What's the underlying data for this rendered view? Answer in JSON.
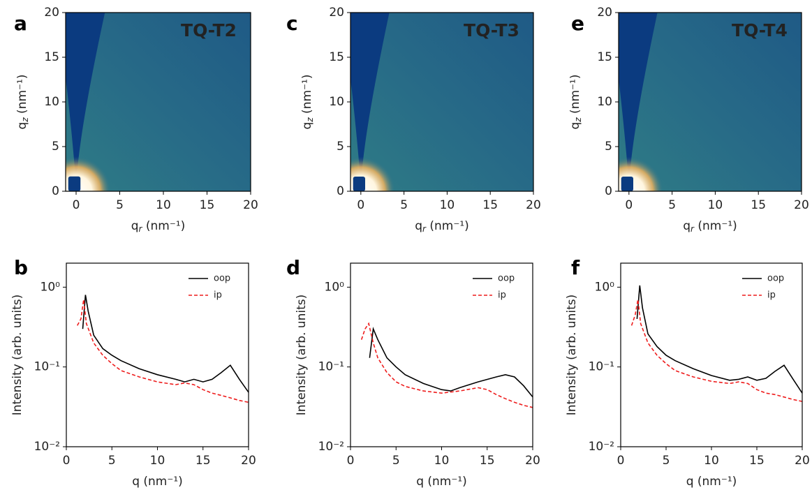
{
  "chart_data": [
    {
      "type": "heatmap",
      "panel": "a",
      "title": "TQ-T2",
      "title_color": "#f2b28e",
      "x_label": "qr (nm⁻¹)",
      "y_label": "qz (nm⁻¹)",
      "xlim": [
        -1.2,
        20
      ],
      "ylim": [
        0,
        20
      ],
      "xticks": [
        0,
        5,
        10,
        15,
        20
      ],
      "yticks": [
        0,
        5,
        10,
        15,
        20
      ]
    },
    {
      "type": "heatmap",
      "panel": "c",
      "title": "TQ-T3",
      "title_color": "#ee82ea",
      "x_label": "qr (nm⁻¹)",
      "y_label": "qz (nm⁻¹)",
      "xlim": [
        -1.2,
        20
      ],
      "ylim": [
        0,
        20
      ],
      "xticks": [
        0,
        5,
        10,
        15,
        20
      ],
      "yticks": [
        0,
        5,
        10,
        15,
        20
      ]
    },
    {
      "type": "heatmap",
      "panel": "e",
      "title": "TQ-T4",
      "title_color": "#6466ee",
      "x_label": "qr (nm⁻¹)",
      "y_label": "qz (nm⁻¹)",
      "xlim": [
        -1.2,
        20
      ],
      "ylim": [
        0,
        20
      ],
      "xticks": [
        0,
        5,
        10,
        15,
        20
      ],
      "yticks": [
        0,
        5,
        10,
        15,
        20
      ]
    },
    {
      "type": "line",
      "panel": "b",
      "x_label": "q (nm⁻¹)",
      "y_label": "Intensity (arb. units)",
      "log_y": true,
      "legend": "upper right",
      "xlim": [
        0,
        20
      ],
      "ylim": [
        0.01,
        2
      ],
      "xticks": [
        0,
        5,
        10,
        15,
        20
      ],
      "yticks": [
        {
          "value": 0.01,
          "label": "10⁻²"
        },
        {
          "value": 0.1,
          "label": "10⁻¹"
        },
        {
          "value": 1,
          "label": "10⁰"
        }
      ],
      "series": [
        {
          "name": "oop",
          "color": "#000000",
          "dashed": false,
          "x": [
            1.8,
            2.1,
            2.4,
            3,
            4,
            5,
            6,
            8,
            10,
            12,
            13,
            14,
            15,
            16,
            17,
            18,
            19,
            20
          ],
          "values": [
            0.3,
            0.8,
            0.5,
            0.25,
            0.17,
            0.14,
            0.12,
            0.095,
            0.08,
            0.07,
            0.065,
            0.07,
            0.065,
            0.07,
            0.085,
            0.105,
            0.07,
            0.048
          ]
        },
        {
          "name": "ip",
          "color": "#ee1c1c",
          "dashed": true,
          "x": [
            1.2,
            1.6,
            1.9,
            2.2,
            3,
            4,
            5,
            6,
            8,
            10,
            12,
            13,
            14,
            15,
            16,
            17,
            18,
            19,
            20
          ],
          "values": [
            0.33,
            0.4,
            0.7,
            0.35,
            0.2,
            0.14,
            0.11,
            0.09,
            0.075,
            0.065,
            0.06,
            0.063,
            0.06,
            0.052,
            0.047,
            0.044,
            0.041,
            0.038,
            0.036
          ]
        }
      ]
    },
    {
      "type": "line",
      "panel": "d",
      "x_label": "q (nm⁻¹)",
      "y_label": "Intensity (arb. units)",
      "log_y": true,
      "legend": "upper right",
      "xlim": [
        0,
        20
      ],
      "ylim": [
        0.01,
        2
      ],
      "xticks": [
        0,
        5,
        10,
        15,
        20
      ],
      "yticks": [
        {
          "value": 0.01,
          "label": "10⁻²"
        },
        {
          "value": 0.1,
          "label": "10⁻¹"
        },
        {
          "value": 1,
          "label": "10⁰"
        }
      ],
      "series": [
        {
          "name": "oop",
          "color": "#000000",
          "dashed": false,
          "x": [
            2.1,
            2.5,
            3,
            4,
            5,
            6,
            8,
            10,
            11,
            12,
            14,
            16,
            17,
            18,
            19,
            20
          ],
          "values": [
            0.13,
            0.3,
            0.22,
            0.13,
            0.1,
            0.08,
            0.062,
            0.052,
            0.05,
            0.055,
            0.065,
            0.075,
            0.08,
            0.075,
            0.058,
            0.042
          ]
        },
        {
          "name": "ip",
          "color": "#ee1c1c",
          "dashed": true,
          "x": [
            1.2,
            1.6,
            2,
            2.5,
            3,
            4,
            5,
            6,
            8,
            10,
            12,
            14,
            15,
            16,
            17,
            18,
            19,
            20
          ],
          "values": [
            0.22,
            0.3,
            0.35,
            0.2,
            0.13,
            0.085,
            0.065,
            0.057,
            0.05,
            0.047,
            0.05,
            0.055,
            0.052,
            0.045,
            0.04,
            0.036,
            0.033,
            0.031
          ]
        }
      ]
    },
    {
      "type": "line",
      "panel": "f",
      "x_label": "q (nm⁻¹)",
      "y_label": "Intensity (arb. units)",
      "log_y": true,
      "legend": "upper right",
      "xlim": [
        0,
        20
      ],
      "ylim": [
        0.01,
        2
      ],
      "xticks": [
        0,
        5,
        10,
        15,
        20
      ],
      "yticks": [
        {
          "value": 0.01,
          "label": "10⁻²"
        },
        {
          "value": 0.1,
          "label": "10⁻¹"
        },
        {
          "value": 1,
          "label": "10⁰"
        }
      ],
      "series": [
        {
          "name": "oop",
          "color": "#000000",
          "dashed": false,
          "x": [
            1.8,
            2.1,
            2.4,
            3,
            4,
            5,
            6,
            8,
            10,
            12,
            13,
            14,
            15,
            16,
            17,
            18,
            19,
            20
          ],
          "values": [
            0.4,
            1.05,
            0.55,
            0.26,
            0.18,
            0.14,
            0.12,
            0.095,
            0.078,
            0.068,
            0.07,
            0.075,
            0.068,
            0.072,
            0.088,
            0.105,
            0.07,
            0.047
          ]
        },
        {
          "name": "ip",
          "color": "#ee1c1c",
          "dashed": true,
          "x": [
            1.2,
            1.6,
            1.9,
            2.2,
            3,
            4,
            5,
            6,
            8,
            10,
            12,
            13,
            14,
            15,
            16,
            17,
            18,
            19,
            20
          ],
          "values": [
            0.33,
            0.45,
            0.7,
            0.35,
            0.2,
            0.14,
            0.11,
            0.09,
            0.075,
            0.066,
            0.062,
            0.065,
            0.062,
            0.052,
            0.047,
            0.045,
            0.042,
            0.039,
            0.037
          ]
        }
      ]
    }
  ]
}
